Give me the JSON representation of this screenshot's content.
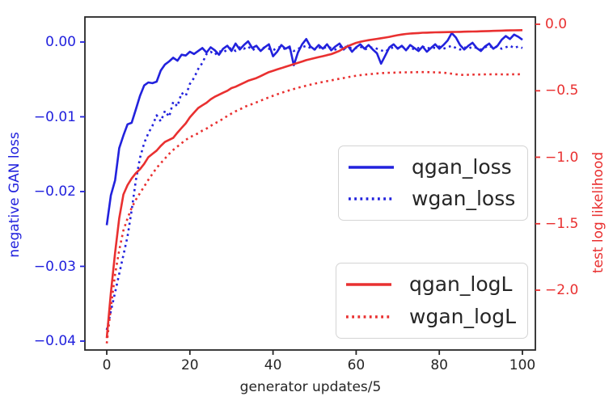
{
  "chart_data": {
    "type": "line",
    "title": "",
    "xlabel": "generator updates/5",
    "ylabel_left": "negative GAN loss",
    "ylabel_right": "test log likelihood",
    "grid": false,
    "x_tick_labels": [
      "0",
      "20",
      "40",
      "60",
      "80",
      "100"
    ],
    "y_tick_labels_left": [
      "0.00",
      "−0.01",
      "−0.02",
      "−0.03",
      "−0.04"
    ],
    "y_tick_labels_right": [
      "0.0",
      "−0.5",
      "−1.0",
      "−1.5",
      "−2.0"
    ],
    "xlim": [
      -5.3,
      103.2
    ],
    "ylim_left": [
      -0.0412,
      0.0034
    ],
    "ylim_right": [
      -2.45,
      0.055
    ],
    "colors": {
      "blue": "#2222dd",
      "red": "#e93030",
      "spine": "#262626"
    },
    "legend_boxes": [
      {
        "entries": [
          "qgan_loss",
          "wgan_loss"
        ]
      },
      {
        "entries": [
          "qgan_logL",
          "wgan_logL"
        ]
      }
    ],
    "x": [
      0,
      1,
      2,
      3,
      4,
      5,
      6,
      7,
      8,
      9,
      10,
      11,
      12,
      13,
      14,
      15,
      16,
      17,
      18,
      19,
      20,
      21,
      22,
      23,
      24,
      25,
      26,
      27,
      28,
      29,
      30,
      31,
      32,
      33,
      34,
      35,
      36,
      37,
      38,
      39,
      40,
      41,
      42,
      43,
      44,
      45,
      46,
      47,
      48,
      49,
      50,
      51,
      52,
      53,
      54,
      55,
      56,
      57,
      58,
      59,
      60,
      61,
      62,
      63,
      64,
      65,
      66,
      67,
      68,
      69,
      70,
      71,
      72,
      73,
      74,
      75,
      76,
      77,
      78,
      79,
      80,
      81,
      82,
      83,
      84,
      85,
      86,
      87,
      88,
      89,
      90,
      91,
      92,
      93,
      94,
      95,
      96,
      97,
      98,
      99,
      100
    ],
    "series": [
      {
        "name": "qgan_loss",
        "axis": "left",
        "style": "solid",
        "color": "blue",
        "values": [
          -0.0245,
          -0.0205,
          -0.0185,
          -0.0142,
          -0.0125,
          -0.011,
          -0.0108,
          -0.009,
          -0.0072,
          -0.0058,
          -0.0054,
          -0.0055,
          -0.0053,
          -0.0038,
          -0.003,
          -0.0026,
          -0.0021,
          -0.0025,
          -0.0017,
          -0.0018,
          -0.0013,
          -0.0016,
          -0.0012,
          -0.0008,
          -0.0014,
          -0.0007,
          -0.0011,
          -0.0017,
          -0.0009,
          -0.0005,
          -0.0012,
          -0.0002,
          -0.001,
          -0.0004,
          0.0001,
          -0.0008,
          -0.0005,
          -0.0012,
          -0.0007,
          -0.0003,
          -0.0019,
          -0.0013,
          -0.0004,
          -0.0009,
          -0.0006,
          -0.0031,
          -0.0014,
          -0.0003,
          0.0004,
          -0.0006,
          -0.001,
          -0.0004,
          -0.0009,
          -0.0003,
          -0.0011,
          -0.0006,
          -0.0002,
          -0.001,
          -0.0005,
          -0.0013,
          -0.0007,
          -0.0003,
          -0.0009,
          -0.0004,
          -0.001,
          -0.0015,
          -0.0029,
          -0.0018,
          -0.0007,
          -0.0003,
          -0.0009,
          -0.0005,
          -0.0011,
          -0.0004,
          -0.0008,
          -0.0012,
          -0.0006,
          -0.0013,
          -0.0008,
          -0.0003,
          -0.0009,
          -0.0004,
          0.0002,
          0.0012,
          0.0006,
          -0.0004,
          -0.001,
          -0.0005,
          -0.0001,
          -0.0008,
          -0.0012,
          -0.0006,
          -0.0002,
          -0.0009,
          -0.0005,
          0.0003,
          0.0008,
          0.0004,
          0.001,
          0.0007,
          0.0003
        ]
      },
      {
        "name": "wgan_loss",
        "axis": "left",
        "style": "dotted",
        "color": "blue",
        "values": [
          -0.0385,
          -0.036,
          -0.0335,
          -0.031,
          -0.0285,
          -0.026,
          -0.0225,
          -0.0185,
          -0.0155,
          -0.0135,
          -0.0122,
          -0.0112,
          -0.0098,
          -0.0106,
          -0.0092,
          -0.01,
          -0.008,
          -0.0086,
          -0.0068,
          -0.0072,
          -0.0056,
          -0.0048,
          -0.0036,
          -0.0028,
          -0.0016,
          -0.0013,
          -0.0017,
          -0.0012,
          -0.0014,
          -0.001,
          -0.0008,
          -0.0012,
          -0.0007,
          -0.0009,
          -0.0006,
          -0.0011,
          -0.0008,
          -0.001,
          -0.0007,
          -0.0009,
          -0.0011,
          -0.0008,
          -0.0006,
          -0.001,
          -0.0008,
          -0.0012,
          -0.0009,
          -0.0007,
          -0.0005,
          -0.0008,
          -0.001,
          -0.0007,
          -0.0009,
          -0.0006,
          -0.0008,
          -0.001,
          -0.0007,
          -0.0005,
          -0.0009,
          -0.0007,
          -0.0008,
          -0.0006,
          -0.001,
          -0.0008,
          -0.0007,
          -0.0009,
          -0.0011,
          -0.0013,
          -0.0009,
          -0.0007,
          -0.0008,
          -0.0006,
          -0.0009,
          -0.0007,
          -0.001,
          -0.0008,
          -0.0006,
          -0.0009,
          -0.0007,
          -0.0008,
          -0.0006,
          -0.0009,
          -0.0007,
          -0.0005,
          -0.0008,
          -0.001,
          -0.0007,
          -0.0009,
          -0.0006,
          -0.0008,
          -0.001,
          -0.0007,
          -0.0005,
          -0.0008,
          -0.0006,
          -0.0009,
          -0.0007,
          -0.0005,
          -0.0008,
          -0.0006,
          -0.0008
        ]
      },
      {
        "name": "qgan_logL",
        "axis": "right",
        "style": "solid",
        "color": "red",
        "values": [
          -2.36,
          -2.02,
          -1.72,
          -1.46,
          -1.28,
          -1.21,
          -1.16,
          -1.12,
          -1.09,
          -1.05,
          -1.0,
          -0.975,
          -0.95,
          -0.915,
          -0.885,
          -0.87,
          -0.855,
          -0.815,
          -0.78,
          -0.745,
          -0.7,
          -0.665,
          -0.63,
          -0.61,
          -0.59,
          -0.565,
          -0.545,
          -0.53,
          -0.515,
          -0.5,
          -0.48,
          -0.47,
          -0.455,
          -0.44,
          -0.425,
          -0.415,
          -0.405,
          -0.39,
          -0.375,
          -0.36,
          -0.35,
          -0.34,
          -0.33,
          -0.32,
          -0.31,
          -0.3,
          -0.29,
          -0.28,
          -0.27,
          -0.262,
          -0.255,
          -0.247,
          -0.24,
          -0.232,
          -0.225,
          -0.213,
          -0.2,
          -0.182,
          -0.165,
          -0.152,
          -0.14,
          -0.132,
          -0.125,
          -0.12,
          -0.115,
          -0.11,
          -0.105,
          -0.1,
          -0.095,
          -0.088,
          -0.082,
          -0.077,
          -0.073,
          -0.07,
          -0.068,
          -0.066,
          -0.064,
          -0.063,
          -0.062,
          -0.061,
          -0.06,
          -0.0595,
          -0.059,
          -0.0585,
          -0.058,
          -0.057,
          -0.056,
          -0.0555,
          -0.055,
          -0.054,
          -0.053,
          -0.052,
          -0.051,
          -0.05,
          -0.049,
          -0.048,
          -0.047,
          -0.046,
          -0.0455,
          -0.045,
          -0.0445
        ]
      },
      {
        "name": "wgan_logL",
        "axis": "right",
        "style": "dotted",
        "color": "red",
        "values": [
          -2.4,
          -2.13,
          -1.88,
          -1.7,
          -1.55,
          -1.46,
          -1.38,
          -1.32,
          -1.27,
          -1.22,
          -1.17,
          -1.125,
          -1.08,
          -1.045,
          -1.01,
          -0.975,
          -0.945,
          -0.92,
          -0.895,
          -0.87,
          -0.85,
          -0.835,
          -0.82,
          -0.8,
          -0.785,
          -0.765,
          -0.745,
          -0.73,
          -0.71,
          -0.69,
          -0.672,
          -0.655,
          -0.64,
          -0.625,
          -0.61,
          -0.6,
          -0.588,
          -0.575,
          -0.562,
          -0.55,
          -0.538,
          -0.527,
          -0.516,
          -0.506,
          -0.496,
          -0.487,
          -0.478,
          -0.47,
          -0.462,
          -0.454,
          -0.447,
          -0.44,
          -0.434,
          -0.428,
          -0.422,
          -0.416,
          -0.41,
          -0.404,
          -0.398,
          -0.392,
          -0.387,
          -0.383,
          -0.379,
          -0.376,
          -0.373,
          -0.37,
          -0.368,
          -0.366,
          -0.365,
          -0.364,
          -0.363,
          -0.362,
          -0.362,
          -0.361,
          -0.361,
          -0.36,
          -0.36,
          -0.36,
          -0.361,
          -0.362,
          -0.363,
          -0.365,
          -0.368,
          -0.372,
          -0.376,
          -0.38,
          -0.381,
          -0.38,
          -0.379,
          -0.378,
          -0.378,
          -0.377,
          -0.377,
          -0.376,
          -0.376,
          -0.377,
          -0.378,
          -0.377,
          -0.376,
          -0.376,
          -0.375
        ]
      }
    ]
  }
}
